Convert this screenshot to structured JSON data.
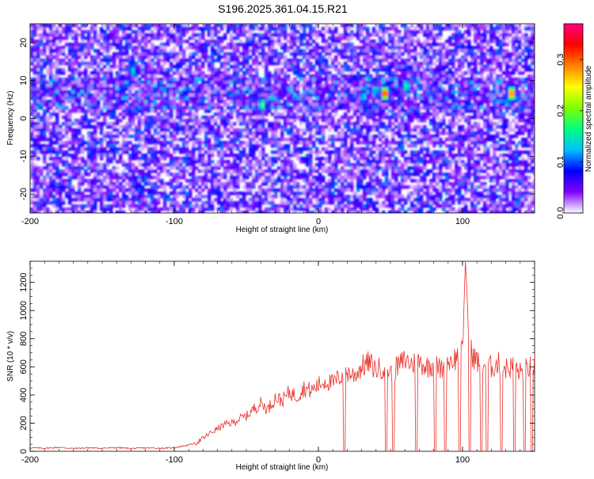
{
  "figure_title": "S196.2025.361.04.15.R21",
  "chart_data": [
    {
      "type": "heatmap",
      "title": "S196.2025.361.04.15.R21",
      "xlabel": "Height of straight line (km)",
      "ylabel": "Frequency (Hz)",
      "xlim": [
        -200,
        150
      ],
      "ylim": [
        -25,
        25
      ],
      "xticks": [
        "-200",
        "-100",
        "0",
        "100"
      ],
      "yticks": [
        "-20",
        "-10",
        "0",
        "10",
        "20"
      ],
      "colorbar": {
        "label": "Normalized spectral amplitude",
        "range": [
          0,
          0.37
        ],
        "ticks": [
          "0.0",
          "0.1",
          "0.2",
          "0.3"
        ],
        "colors": [
          "#ffffff",
          "#8000ff",
          "#0000ff",
          "#00c0ff",
          "#00ff80",
          "#80ff00",
          "#ffff00",
          "#ff8000",
          "#ff0000",
          "#ff0080"
        ]
      },
      "hotspots": [
        {
          "x": 45,
          "y": 7,
          "value": 0.35
        },
        {
          "x": 133,
          "y": 7,
          "value": 0.33
        },
        {
          "x": -40,
          "y": 4,
          "value": 0.2
        },
        {
          "x": 60,
          "y": 9,
          "value": 0.18
        },
        {
          "x": -130,
          "y": 13,
          "value": 0.15
        },
        {
          "x": 30,
          "y": 6,
          "value": 0.15
        }
      ]
    },
    {
      "type": "line",
      "xlabel": "Height of straight line (km)",
      "ylabel": "SNR (10 * v/v)",
      "xlim": [
        -200,
        150
      ],
      "ylim": [
        0,
        1350
      ],
      "xticks": [
        "-200",
        "-100",
        "0",
        "100"
      ],
      "yticks": [
        "0",
        "200",
        "400",
        "600",
        "800",
        "1000",
        "1200"
      ],
      "color": "#e8302a",
      "series": [
        {
          "points": [
            [
              -200,
              25
            ],
            [
              -190,
              22
            ],
            [
              -180,
              28
            ],
            [
              -170,
              20
            ],
            [
              -160,
              25
            ],
            [
              -150,
              22
            ],
            [
              -140,
              26
            ],
            [
              -130,
              20
            ],
            [
              -120,
              24
            ],
            [
              -110,
              22
            ],
            [
              -100,
              25
            ],
            [
              -95,
              35
            ],
            [
              -90,
              45
            ],
            [
              -85,
              60
            ],
            [
              -80,
              90
            ],
            [
              -75,
              130
            ],
            [
              -70,
              160
            ],
            [
              -65,
              190
            ],
            [
              -60,
              200
            ],
            [
              -55,
              230
            ],
            [
              -50,
              250
            ],
            [
              -45,
              300
            ],
            [
              -40,
              340
            ],
            [
              -35,
              300
            ],
            [
              -30,
              380
            ],
            [
              -25,
              360
            ],
            [
              -20,
              420
            ],
            [
              -15,
              390
            ],
            [
              -10,
              450
            ],
            [
              -5,
              430
            ],
            [
              0,
              470
            ],
            [
              5,
              500
            ],
            [
              10,
              480
            ],
            [
              15,
              530
            ],
            [
              20,
              560
            ],
            [
              25,
              540
            ],
            [
              30,
              600
            ],
            [
              35,
              630
            ],
            [
              40,
              580
            ],
            [
              45,
              600
            ],
            [
              50,
              560
            ],
            [
              55,
              600
            ],
            [
              60,
              650
            ],
            [
              65,
              620
            ],
            [
              70,
              640
            ],
            [
              75,
              600
            ],
            [
              80,
              620
            ],
            [
              85,
              580
            ],
            [
              90,
              640
            ],
            [
              95,
              660
            ],
            [
              100,
              700
            ],
            [
              102,
              1350
            ],
            [
              105,
              720
            ],
            [
              110,
              640
            ],
            [
              115,
              620
            ],
            [
              120,
              600
            ],
            [
              125,
              620
            ],
            [
              130,
              590
            ],
            [
              135,
              600
            ],
            [
              140,
              560
            ],
            [
              145,
              590
            ],
            [
              150,
              620
            ]
          ],
          "dropouts": [
            18,
            47,
            52,
            68,
            81,
            88,
            98,
            105,
            113,
            117,
            127,
            136,
            143,
            148
          ]
        }
      ]
    }
  ]
}
